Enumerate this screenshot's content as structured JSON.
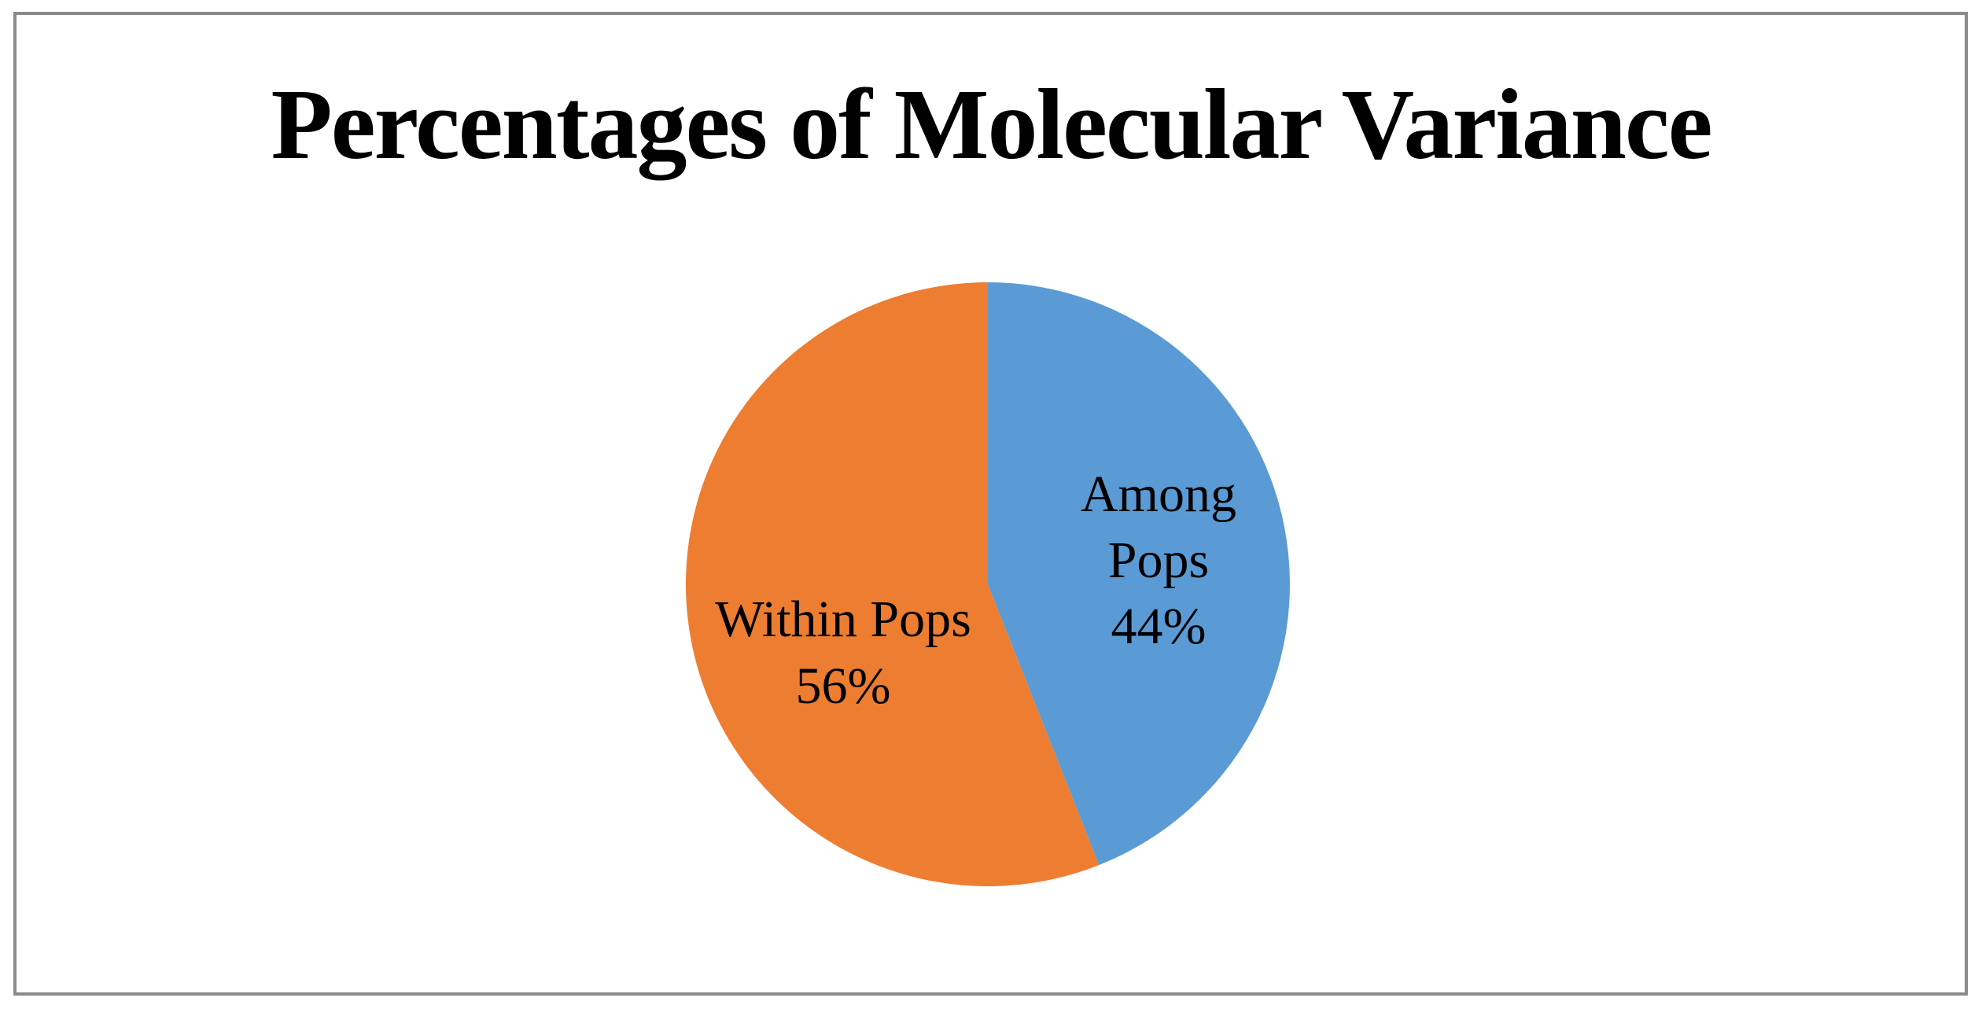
{
  "title": {
    "text": "Percentages of Molecular Variance"
  },
  "chart_data": {
    "type": "pie",
    "title": "Percentages of Molecular Variance",
    "categories": [
      "Among Pops",
      "Within Pops"
    ],
    "values": [
      44,
      56
    ],
    "unit": "%",
    "colors": [
      "#5B9BD5",
      "#ED7D31"
    ],
    "start_angle_deg": 0,
    "direction": "clockwise",
    "legend": false,
    "background": "#ffffff",
    "frame_border_color": "#8a8a8a",
    "label_color": "#000000",
    "data_labels": [
      {
        "slice": "Among Pops",
        "position": "inside",
        "lines": [
          "Among",
          "Pops",
          "44%"
        ]
      },
      {
        "slice": "Within Pops",
        "position": "inside",
        "lines": [
          "Within Pops",
          "56%"
        ]
      }
    ]
  }
}
